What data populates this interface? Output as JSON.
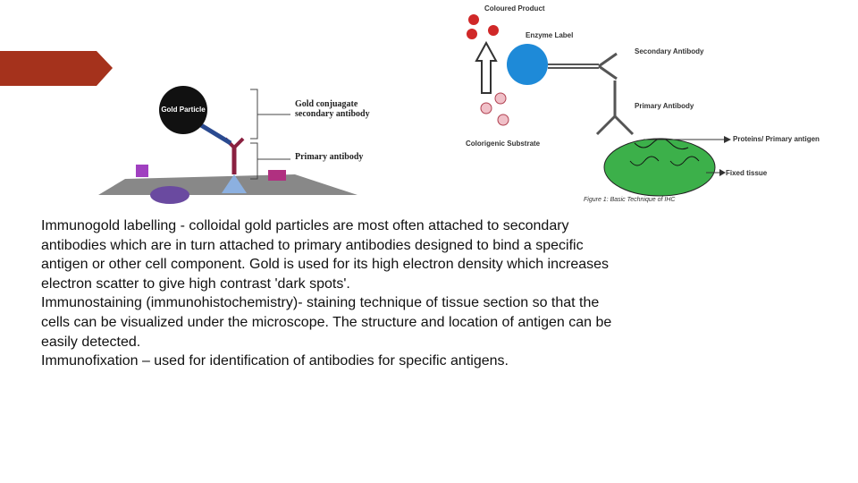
{
  "left_figure": {
    "gold_particle": "Gold Particle",
    "secondary_label": [
      "Gold conjuagate",
      "secondary antibody"
    ],
    "primary_label": "Primary antibody"
  },
  "right_figure": {
    "coloured_product": "Coloured Product",
    "enzyme_label": "Enzyme Label",
    "secondary_antibody": "Secondary Antibody",
    "primary_antibody": "Primary Antibody",
    "substrate": "Colorigenic Substrate",
    "antigen": "Proteins/ Primary antigen",
    "fixed_tissue": "Fixed tissue",
    "caption": "Figure 1: Basic Technique of IHC"
  },
  "body": [
    "Immunogold labelling -  colloidal gold particles are most often attached to secondary  antibodies  which are in turn attached to primary antibodies designed to bind a specific antigen or other cell component. Gold is used for its high electron density which increases electron scatter to give high contrast 'dark spots'.",
    "Immunostaining (immunohistochemistry)- staining technique of tissue section so that the cells can be visualized under the microscope. The structure and location of antigen can be easily detected.",
    "Immunofixation – used for identification of antibodies for specific antigens."
  ]
}
